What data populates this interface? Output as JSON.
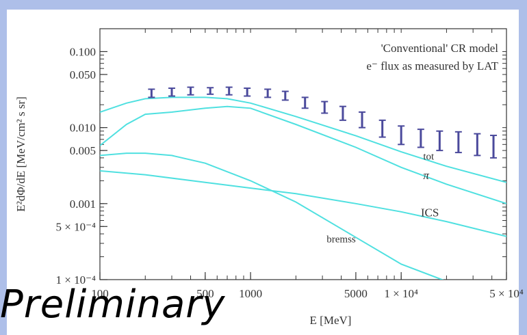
{
  "watermark": "Preliminary",
  "chart_data": {
    "type": "line",
    "title": "",
    "xlabel": "E [MeV]",
    "ylabel": "E²dΦ/dE [MeV/cm² s sr]",
    "xscale": "log",
    "yscale": "log",
    "xlim": [
      100,
      50000
    ],
    "ylim": [
      0.0001,
      0.2
    ],
    "grid": false,
    "legend_placement": "top-right",
    "annotations": [
      "'Conventional' CR model",
      "e⁻ flux as measured by LAT"
    ],
    "x_tick_labels": [
      {
        "value": 100,
        "label": "100"
      },
      {
        "value": 500,
        "label": "500"
      },
      {
        "value": 1000,
        "label": "1000"
      },
      {
        "value": 5000,
        "label": "5000"
      },
      {
        "value": 10000,
        "label": "1 × 10⁴"
      },
      {
        "value": 50000,
        "label": "5 × 10⁴"
      }
    ],
    "y_tick_labels": [
      {
        "value": 0.0001,
        "label": "1 × 10⁻⁴"
      },
      {
        "value": 0.0005,
        "label": "5 × 10⁻⁴"
      },
      {
        "value": 0.001,
        "label": "0.001"
      },
      {
        "value": 0.005,
        "label": "0.005"
      },
      {
        "value": 0.01,
        "label": "0.010"
      },
      {
        "value": 0.05,
        "label": "0.050"
      },
      {
        "value": 0.1,
        "label": "0.100"
      }
    ],
    "colors": {
      "model": "#4fe0e0",
      "data": "#4b4a9c",
      "axis": "#333333"
    },
    "series": [
      {
        "name": "tot",
        "kind": "line",
        "x": [
          100,
          150,
          200,
          300,
          500,
          700,
          1000,
          2000,
          5000,
          10000,
          20000,
          50000
        ],
        "y": [
          0.016,
          0.021,
          0.024,
          0.025,
          0.025,
          0.024,
          0.021,
          0.014,
          0.0078,
          0.0048,
          0.0031,
          0.0019
        ]
      },
      {
        "name": "π",
        "kind": "line",
        "x": [
          100,
          150,
          200,
          300,
          500,
          700,
          1000,
          2000,
          5000,
          10000,
          20000,
          50000
        ],
        "y": [
          0.0058,
          0.011,
          0.015,
          0.016,
          0.018,
          0.019,
          0.018,
          0.011,
          0.0055,
          0.003,
          0.0018,
          0.001
        ]
      },
      {
        "name": "ICS",
        "kind": "line",
        "x": [
          100,
          200,
          500,
          1000,
          2000,
          5000,
          10000,
          20000,
          50000
        ],
        "y": [
          0.0027,
          0.0024,
          0.0019,
          0.0016,
          0.00135,
          0.001,
          0.00078,
          0.00058,
          0.00037
        ]
      },
      {
        "name": "bremss",
        "kind": "line",
        "x": [
          100,
          150,
          200,
          300,
          500,
          1000,
          2000,
          5000,
          10000,
          20000
        ],
        "y": [
          0.0043,
          0.0046,
          0.0046,
          0.0043,
          0.0034,
          0.002,
          0.00105,
          0.00036,
          0.00016,
          9.5e-05
        ]
      },
      {
        "name": "e⁻ flux as measured by LAT",
        "kind": "errorbar",
        "points": [
          {
            "x": 220,
            "y": 0.0285,
            "ylo": 0.025,
            "yhi": 0.032
          },
          {
            "x": 300,
            "y": 0.0295,
            "ylo": 0.026,
            "yhi": 0.033
          },
          {
            "x": 400,
            "y": 0.0305,
            "ylo": 0.027,
            "yhi": 0.034
          },
          {
            "x": 540,
            "y": 0.0305,
            "ylo": 0.0275,
            "yhi": 0.0335
          },
          {
            "x": 720,
            "y": 0.0303,
            "ylo": 0.027,
            "yhi": 0.034
          },
          {
            "x": 950,
            "y": 0.0293,
            "ylo": 0.026,
            "yhi": 0.033
          },
          {
            "x": 1300,
            "y": 0.028,
            "ylo": 0.025,
            "yhi": 0.032
          },
          {
            "x": 1700,
            "y": 0.026,
            "ylo": 0.023,
            "yhi": 0.03
          },
          {
            "x": 2300,
            "y": 0.0215,
            "ylo": 0.018,
            "yhi": 0.025
          },
          {
            "x": 3100,
            "y": 0.0185,
            "ylo": 0.0155,
            "yhi": 0.022
          },
          {
            "x": 4100,
            "y": 0.0155,
            "ylo": 0.0125,
            "yhi": 0.019
          },
          {
            "x": 5500,
            "y": 0.0125,
            "ylo": 0.01,
            "yhi": 0.016
          },
          {
            "x": 7500,
            "y": 0.0095,
            "ylo": 0.0075,
            "yhi": 0.0125
          },
          {
            "x": 10000,
            "y": 0.008,
            "ylo": 0.006,
            "yhi": 0.0105
          },
          {
            "x": 13500,
            "y": 0.0072,
            "ylo": 0.0055,
            "yhi": 0.0095
          },
          {
            "x": 18000,
            "y": 0.0068,
            "ylo": 0.005,
            "yhi": 0.009
          },
          {
            "x": 24000,
            "y": 0.0064,
            "ylo": 0.0047,
            "yhi": 0.0088
          },
          {
            "x": 32000,
            "y": 0.006,
            "ylo": 0.0043,
            "yhi": 0.0083
          },
          {
            "x": 41000,
            "y": 0.0056,
            "ylo": 0.004,
            "yhi": 0.0079
          }
        ]
      }
    ]
  }
}
